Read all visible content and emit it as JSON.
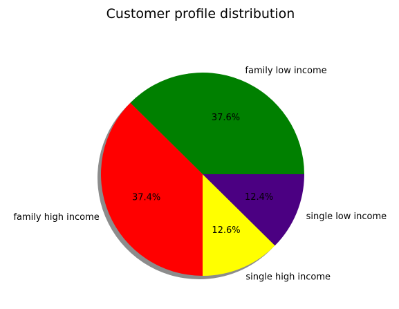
{
  "chart_data": {
    "type": "pie",
    "title": "Customer profile distribution",
    "shadow": true,
    "start_angle_deg": 0,
    "direction": "counterclockwise",
    "slices": [
      {
        "label": "family low income",
        "value": 37.6,
        "pct_label": "37.6%",
        "color": "#008000"
      },
      {
        "label": "family high income",
        "value": 37.4,
        "pct_label": "37.4%",
        "color": "#ff0000"
      },
      {
        "label": "single high income",
        "value": 12.6,
        "pct_label": "12.6%",
        "color": "#ffff00"
      },
      {
        "label": "single low income",
        "value": 12.4,
        "pct_label": "12.4%",
        "color": "#4b0082"
      }
    ]
  }
}
